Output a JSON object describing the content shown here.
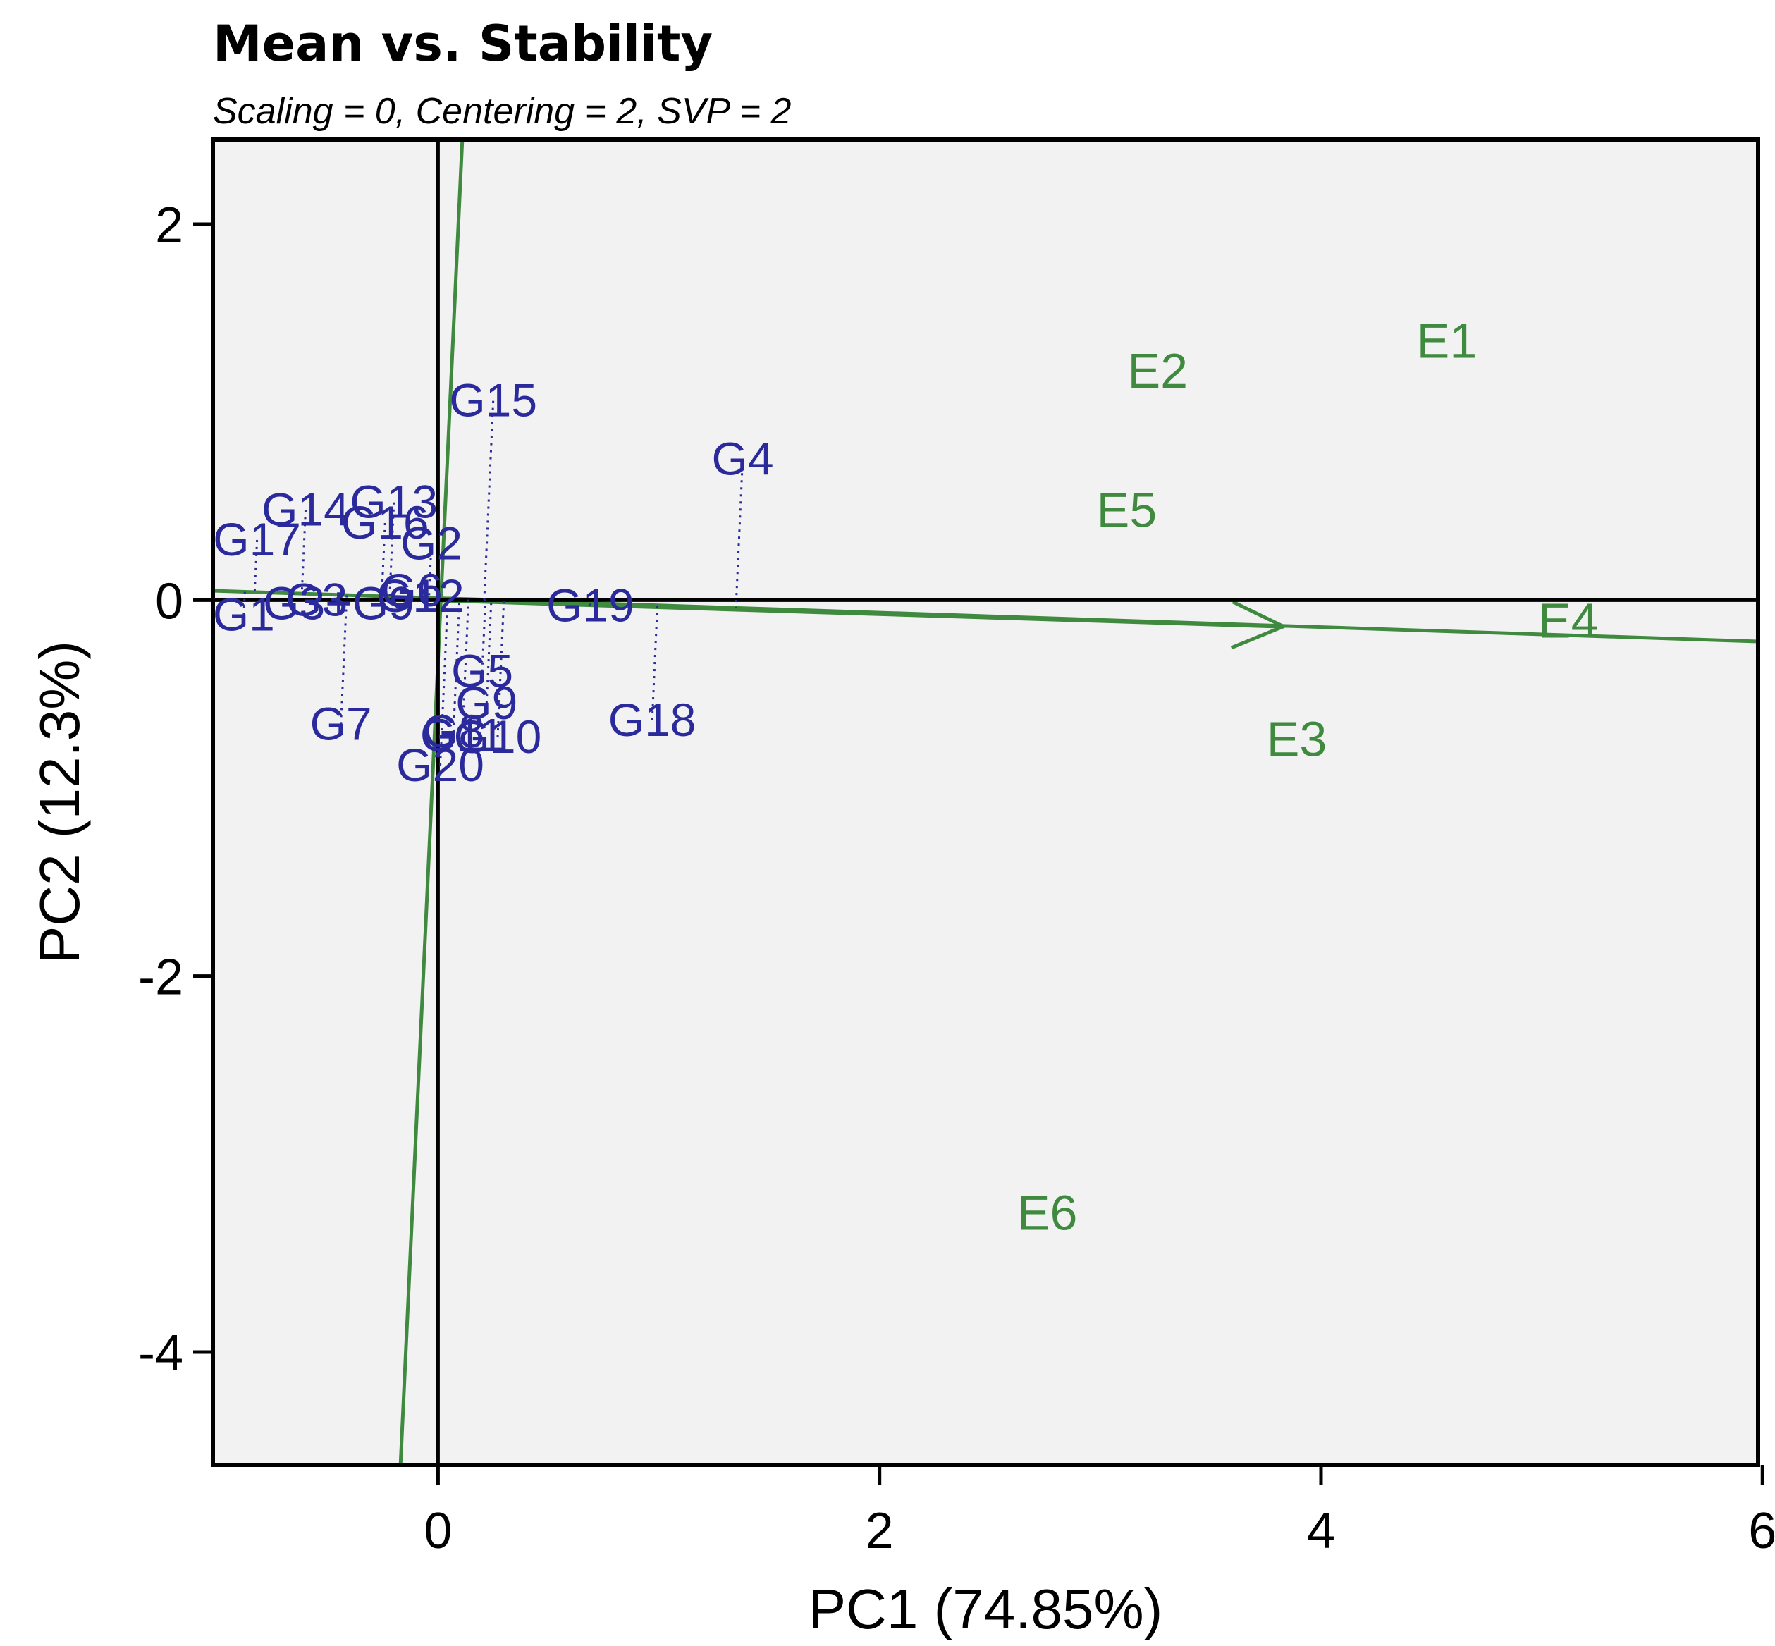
{
  "chart_data": {
    "type": "scatter",
    "title": "Mean vs. Stability",
    "subtitle": "Scaling = 0, Centering = 2, SVP = 2",
    "xlabel": "PC1 (74.85%)",
    "ylabel": "PC2 (12.3%)",
    "xlim": [
      -1.02,
      5.98
    ],
    "ylim": [
      -4.6,
      2.45
    ],
    "xticks": [
      0,
      2,
      4,
      6
    ],
    "yticks": [
      2,
      0,
      -2,
      -4
    ],
    "colors": {
      "genotype": "#2a2a9c",
      "environment": "#3f8a3f",
      "axis_line": "#000000",
      "ate_line": "#3f8a3f",
      "projection": "#2a2a9c",
      "background": "#f2f2f2"
    },
    "aec_abscissa": {
      "from": [
        -1.02,
        0.05
      ],
      "to": [
        5.98,
        -0.22
      ]
    },
    "aec_ordinate": {
      "from": [
        -0.17,
        -4.6
      ],
      "to": [
        0.11,
        2.45
      ]
    },
    "aec_arrow_tip": [
      3.83,
      -0.14
    ],
    "genotypes": [
      {
        "name": "G1",
        "x": -0.88,
        "y": -0.08
      },
      {
        "name": "G2",
        "x": -0.03,
        "y": 0.3
      },
      {
        "name": "G3",
        "x": -0.55,
        "y": 0.0
      },
      {
        "name": "G4",
        "x": 1.38,
        "y": 0.75
      },
      {
        "name": "G5",
        "x": 0.2,
        "y": -0.38
      },
      {
        "name": "G6",
        "x": -0.12,
        "y": 0.05
      },
      {
        "name": "G7",
        "x": -0.44,
        "y": -0.66
      },
      {
        "name": "G8",
        "x": 0.07,
        "y": -0.7
      },
      {
        "name": "G9",
        "x": 0.22,
        "y": -0.55
      },
      {
        "name": "G10",
        "x": 0.27,
        "y": -0.73
      },
      {
        "name": "G11",
        "x": 0.11,
        "y": -0.72
      },
      {
        "name": "G12",
        "x": -0.08,
        "y": 0.02
      },
      {
        "name": "G13",
        "x": -0.2,
        "y": 0.52
      },
      {
        "name": "G14",
        "x": -0.6,
        "y": 0.48
      },
      {
        "name": "G15",
        "x": 0.25,
        "y": 1.06
      },
      {
        "name": "G16",
        "x": -0.24,
        "y": 0.41
      },
      {
        "name": "G17",
        "x": -0.82,
        "y": 0.32
      },
      {
        "name": "G18",
        "x": 0.97,
        "y": -0.64
      },
      {
        "name": "G19",
        "x": 0.69,
        "y": -0.03
      },
      {
        "name": "G20",
        "x": 0.01,
        "y": -0.88
      },
      {
        "name": "G3+G9",
        "x": -0.45,
        "y": -0.02
      }
    ],
    "environments": [
      {
        "name": "E1",
        "x": 4.57,
        "y": 1.38
      },
      {
        "name": "E2",
        "x": 3.26,
        "y": 1.22
      },
      {
        "name": "E3",
        "x": 3.89,
        "y": -0.74
      },
      {
        "name": "E4",
        "x": 5.12,
        "y": -0.11
      },
      {
        "name": "E5",
        "x": 3.12,
        "y": 0.48
      },
      {
        "name": "E6",
        "x": 2.76,
        "y": -3.26
      }
    ]
  }
}
